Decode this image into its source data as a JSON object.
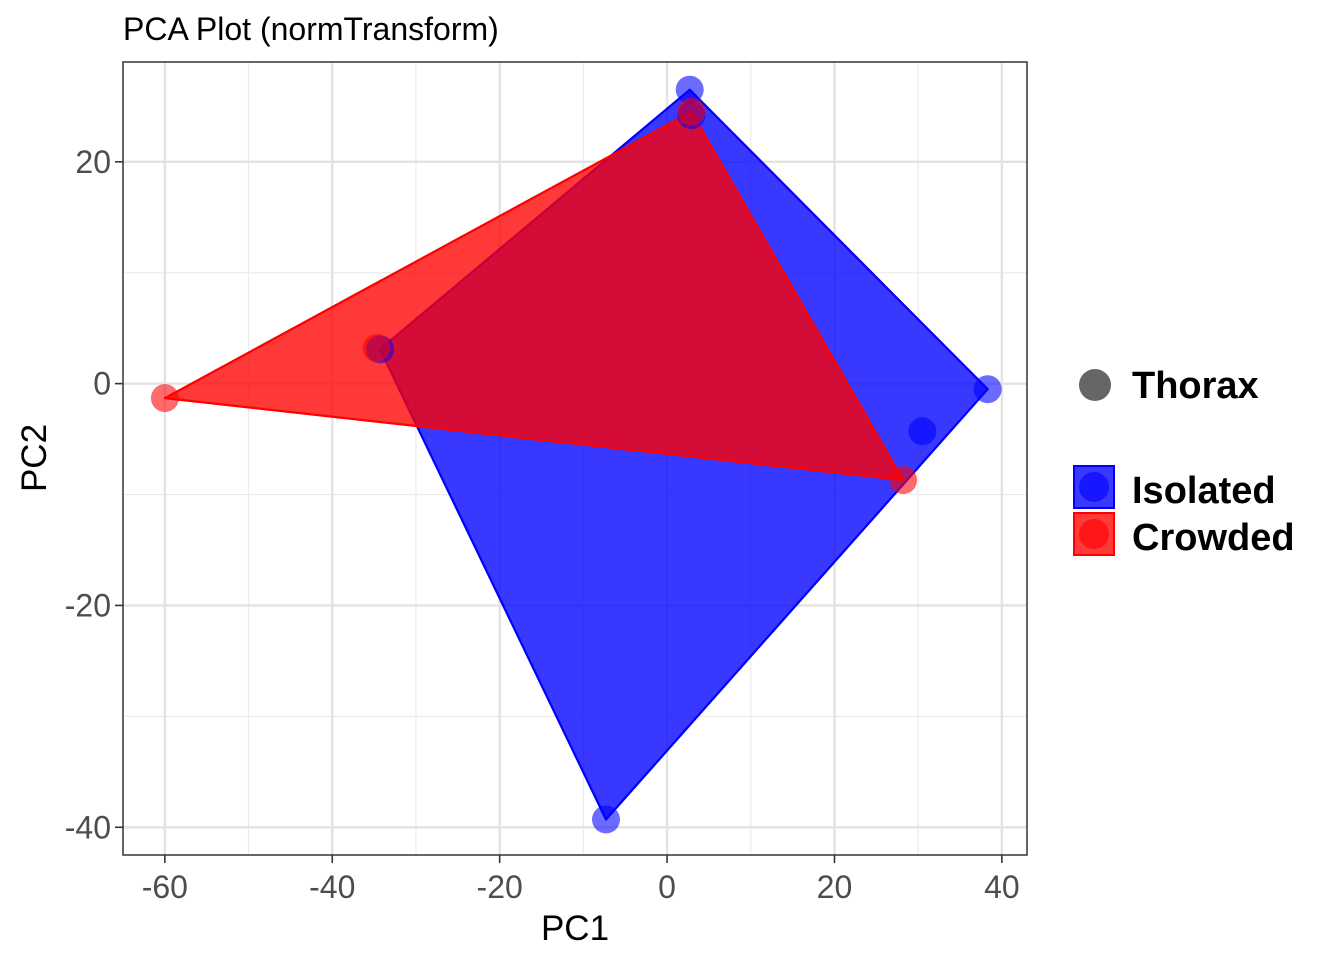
{
  "chart_data": {
    "type": "scatter",
    "title": "PCA Plot (normTransform)",
    "xlabel": "PC1",
    "ylabel": "PC2",
    "xlim": [
      -65,
      43
    ],
    "ylim": [
      -42.5,
      29
    ],
    "xticks": [
      -60,
      -40,
      -20,
      0,
      20,
      40
    ],
    "yticks": [
      -40,
      -20,
      0,
      20
    ],
    "x_tick_labels": [
      "-60",
      "-40",
      "-20",
      "0",
      "20",
      "40"
    ],
    "y_tick_labels": [
      "-40",
      "-20",
      "0",
      "20"
    ],
    "grid": true,
    "legend_position": "right",
    "shape_legend": {
      "label": "Thorax",
      "color": "#666666"
    },
    "series": [
      {
        "name": "Isolated",
        "color": "#0000FF",
        "points": [
          {
            "x": 2.7,
            "y": 26.5
          },
          {
            "x": 2.9,
            "y": 24.2
          },
          {
            "x": 38.3,
            "y": -0.5
          },
          {
            "x": 30.5,
            "y": -4.3
          },
          {
            "x": -7.3,
            "y": -39.3
          },
          {
            "x": -34.3,
            "y": 3.1
          }
        ],
        "hull": [
          {
            "x": 2.7,
            "y": 26.5
          },
          {
            "x": 38.3,
            "y": -0.5
          },
          {
            "x": -7.3,
            "y": -39.3
          },
          {
            "x": -34.3,
            "y": 3.1
          }
        ]
      },
      {
        "name": "Crowded",
        "color": "#FF0000",
        "points": [
          {
            "x": -60.0,
            "y": -1.3
          },
          {
            "x": -34.7,
            "y": 3.2
          },
          {
            "x": 2.9,
            "y": 24.5
          },
          {
            "x": 28.2,
            "y": -8.7
          }
        ],
        "hull": [
          {
            "x": -60.0,
            "y": -1.3
          },
          {
            "x": 2.9,
            "y": 24.5
          },
          {
            "x": 28.2,
            "y": -8.7
          }
        ]
      }
    ]
  }
}
